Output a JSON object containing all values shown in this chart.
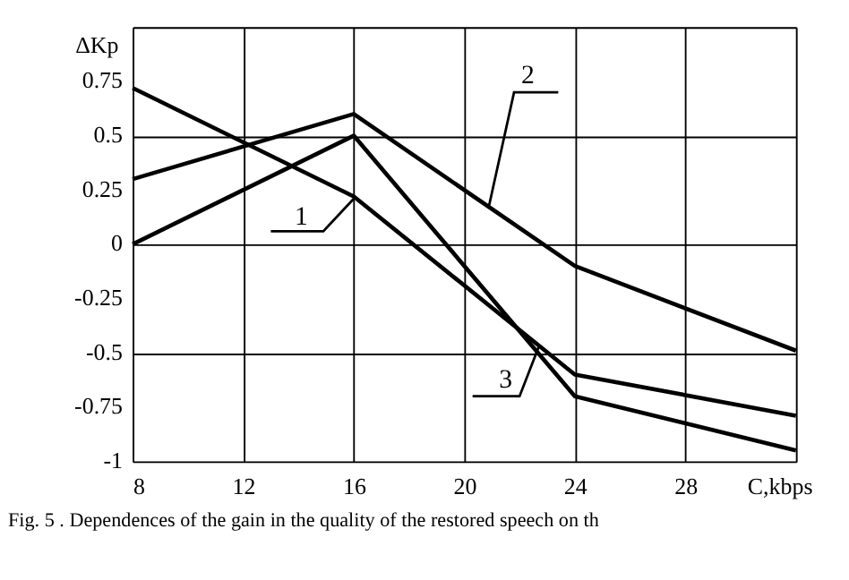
{
  "chart_data": {
    "type": "line",
    "xlabel": "C,kbps",
    "ylabel": "ΔKp",
    "x": [
      8,
      16,
      24,
      32
    ],
    "series": [
      {
        "name": "1",
        "color": "#000000",
        "values": [
          0.72,
          0.22,
          -0.6,
          -0.79
        ]
      },
      {
        "name": "2",
        "color": "#000000",
        "values": [
          0.3,
          0.6,
          -0.1,
          -0.49
        ]
      },
      {
        "name": "3",
        "color": "#000000",
        "values": [
          0,
          0.5,
          -0.7,
          -0.95
        ]
      }
    ],
    "xlim": [
      8,
      32
    ],
    "xticks": [
      8,
      12,
      16,
      20,
      24,
      28,
      {
        "value": 32,
        "label": null
      }
    ],
    "ylim": [
      -1,
      1
    ],
    "yticks": [
      -1,
      -0.75,
      -0.5,
      -0.25,
      0,
      0.25,
      0.5,
      0.75,
      {
        "value": 1,
        "label": null
      }
    ],
    "grid": true,
    "legend": false,
    "marker": "none",
    "line_style": "solid",
    "annotations": [
      "Fig. 5 . Dependences of the gain in the quality of the restored speech on th"
    ]
  }
}
